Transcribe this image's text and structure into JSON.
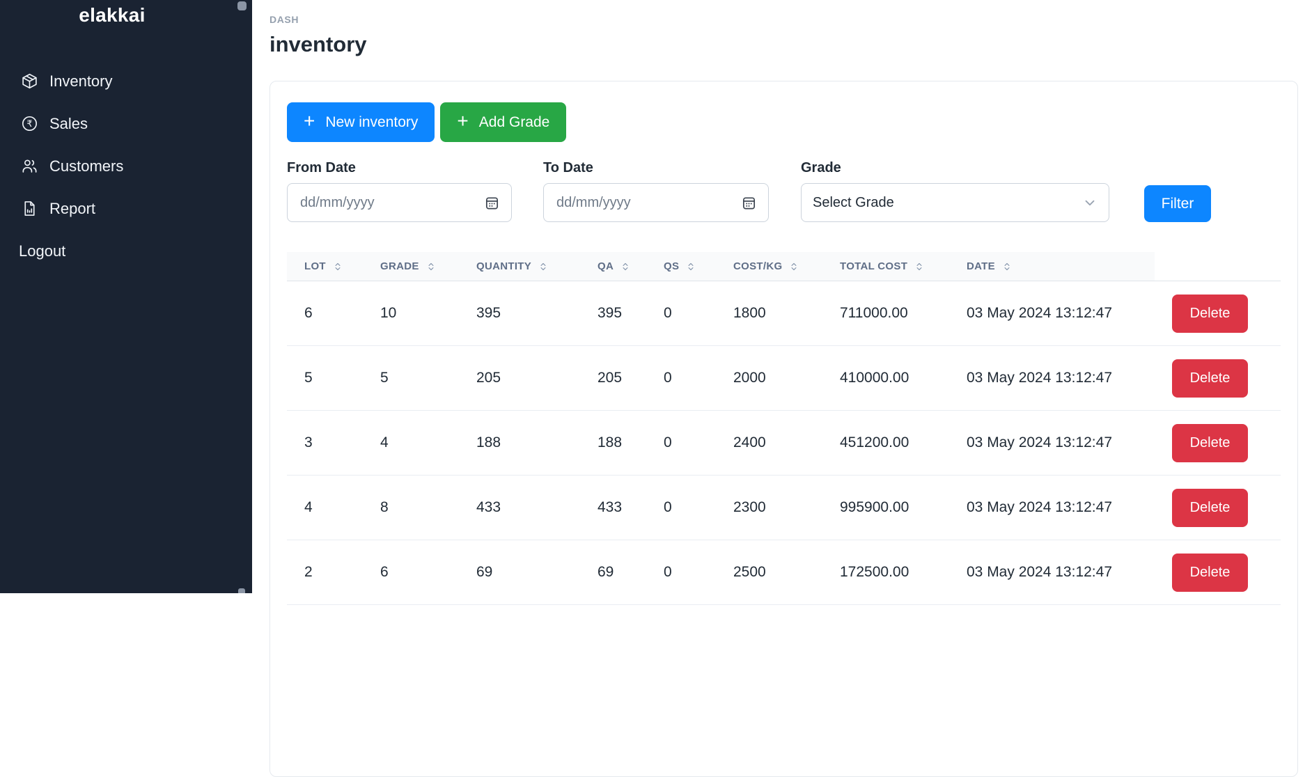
{
  "brand": "elakkai",
  "sidebar": {
    "items": [
      {
        "label": "Inventory",
        "icon": "package-icon"
      },
      {
        "label": "Sales",
        "icon": "rupee-circle-icon"
      },
      {
        "label": "Customers",
        "icon": "users-icon"
      },
      {
        "label": "Report",
        "icon": "report-icon"
      }
    ],
    "logout_label": "Logout"
  },
  "header": {
    "breadcrumb": "DASH",
    "title": "inventory"
  },
  "toolbar": {
    "plus": "+",
    "new_inventory_label": "New inventory",
    "add_grade_label": "Add Grade"
  },
  "filters": {
    "from_date": {
      "label": "From Date",
      "placeholder": "dd/mm/yyyy",
      "value": ""
    },
    "to_date": {
      "label": "To Date",
      "placeholder": "dd/mm/yyyy",
      "value": ""
    },
    "grade": {
      "label": "Grade",
      "selected": "Select Grade"
    },
    "filter_button_label": "Filter"
  },
  "table": {
    "columns": [
      "LOT",
      "GRADE",
      "QUANTITY",
      "QA",
      "QS",
      "COST/KG",
      "TOTAL COST",
      "DATE"
    ],
    "rows": [
      {
        "lot": "6",
        "grade": "10",
        "quantity": "395",
        "qa": "395",
        "qs": "0",
        "cost_kg": "1800",
        "total_cost": "711000.00",
        "date": "03 May 2024 13:12:47"
      },
      {
        "lot": "5",
        "grade": "5",
        "quantity": "205",
        "qa": "205",
        "qs": "0",
        "cost_kg": "2000",
        "total_cost": "410000.00",
        "date": "03 May 2024 13:12:47"
      },
      {
        "lot": "3",
        "grade": "4",
        "quantity": "188",
        "qa": "188",
        "qs": "0",
        "cost_kg": "2400",
        "total_cost": "451200.00",
        "date": "03 May 2024 13:12:47"
      },
      {
        "lot": "4",
        "grade": "8",
        "quantity": "433",
        "qa": "433",
        "qs": "0",
        "cost_kg": "2300",
        "total_cost": "995900.00",
        "date": "03 May 2024 13:12:47"
      },
      {
        "lot": "2",
        "grade": "6",
        "quantity": "69",
        "qa": "69",
        "qs": "0",
        "cost_kg": "2500",
        "total_cost": "172500.00",
        "date": "03 May 2024 13:12:47"
      }
    ],
    "delete_label": "Delete"
  },
  "colors": {
    "sidebar_bg": "#1a2332",
    "accent_blue": "#0d86ff",
    "accent_green": "#28a745",
    "danger_red": "#dc3545",
    "page_bg": "#ffffff",
    "text_dark": "#212b36",
    "muted_text": "#95a0ae",
    "table_header_text": "#5f6e87",
    "border": "#e5e9ee"
  }
}
